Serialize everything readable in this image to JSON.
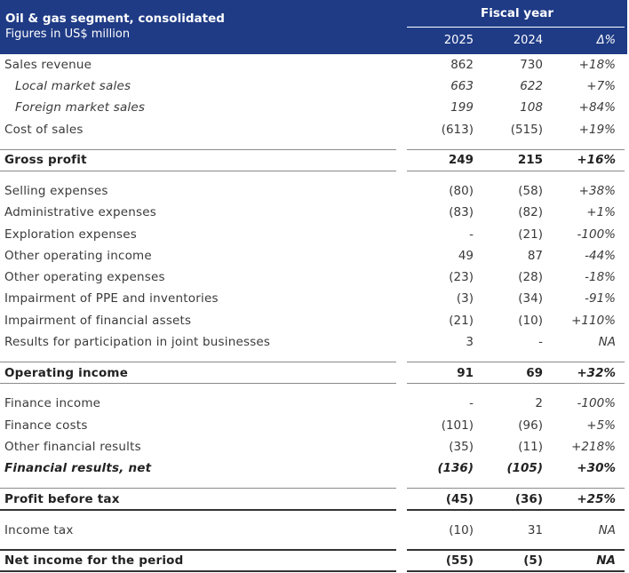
{
  "header": {
    "title": "Oil & gas segment, consolidated",
    "subtitle": "Figures in US$ million",
    "period_label": "Fiscal year",
    "col_2025": "2025",
    "col_2024": "2024",
    "col_delta": "Δ%"
  },
  "rows": [
    {
      "label": "Sales revenue",
      "v2025": "862",
      "v2024": "730",
      "delta": "+18%"
    },
    {
      "label": "Local market sales",
      "v2025": "663",
      "v2024": "622",
      "delta": "+7%"
    },
    {
      "label": "Foreign market sales",
      "v2025": "199",
      "v2024": "108",
      "delta": "+84%"
    },
    {
      "label": "Cost of sales",
      "v2025": "(613)",
      "v2024": "(515)",
      "delta": "+19%"
    },
    {
      "label": "Gross profit",
      "v2025": "249",
      "v2024": "215",
      "delta": "+16%"
    },
    {
      "label": "Selling expenses",
      "v2025": "(80)",
      "v2024": "(58)",
      "delta": "+38%"
    },
    {
      "label": "Administrative expenses",
      "v2025": "(83)",
      "v2024": "(82)",
      "delta": "+1%"
    },
    {
      "label": "Exploration expenses",
      "v2025": "-",
      "v2024": "(21)",
      "delta": "-100%"
    },
    {
      "label": "Other operating income",
      "v2025": "49",
      "v2024": "87",
      "delta": "-44%"
    },
    {
      "label": "Other operating expenses",
      "v2025": "(23)",
      "v2024": "(28)",
      "delta": "-18%"
    },
    {
      "label": "Impairment of PPE and inventories",
      "v2025": "(3)",
      "v2024": "(34)",
      "delta": "-91%"
    },
    {
      "label": "Impairment of financial assets",
      "v2025": "(21)",
      "v2024": "(10)",
      "delta": "+110%"
    },
    {
      "label": "Results for participation in joint businesses",
      "v2025": "3",
      "v2024": "-",
      "delta": "NA"
    },
    {
      "label": "Operating income",
      "v2025": "91",
      "v2024": "69",
      "delta": "+32%"
    },
    {
      "label": "Finance income",
      "v2025": "-",
      "v2024": "2",
      "delta": "-100%"
    },
    {
      "label": "Finance costs",
      "v2025": "(101)",
      "v2024": "(96)",
      "delta": "+5%"
    },
    {
      "label": "Other financial results",
      "v2025": "(35)",
      "v2024": "(11)",
      "delta": "+218%"
    },
    {
      "label": "Financial results, net",
      "v2025": "(136)",
      "v2024": "(105)",
      "delta": "+30%"
    },
    {
      "label": "Profit before tax",
      "v2025": "(45)",
      "v2024": "(36)",
      "delta": "+25%"
    },
    {
      "label": "Income tax",
      "v2025": "(10)",
      "v2024": "31",
      "delta": "NA"
    },
    {
      "label": "Net income for the period",
      "v2025": "(55)",
      "v2024": "(5)",
      "delta": "NA"
    }
  ]
}
